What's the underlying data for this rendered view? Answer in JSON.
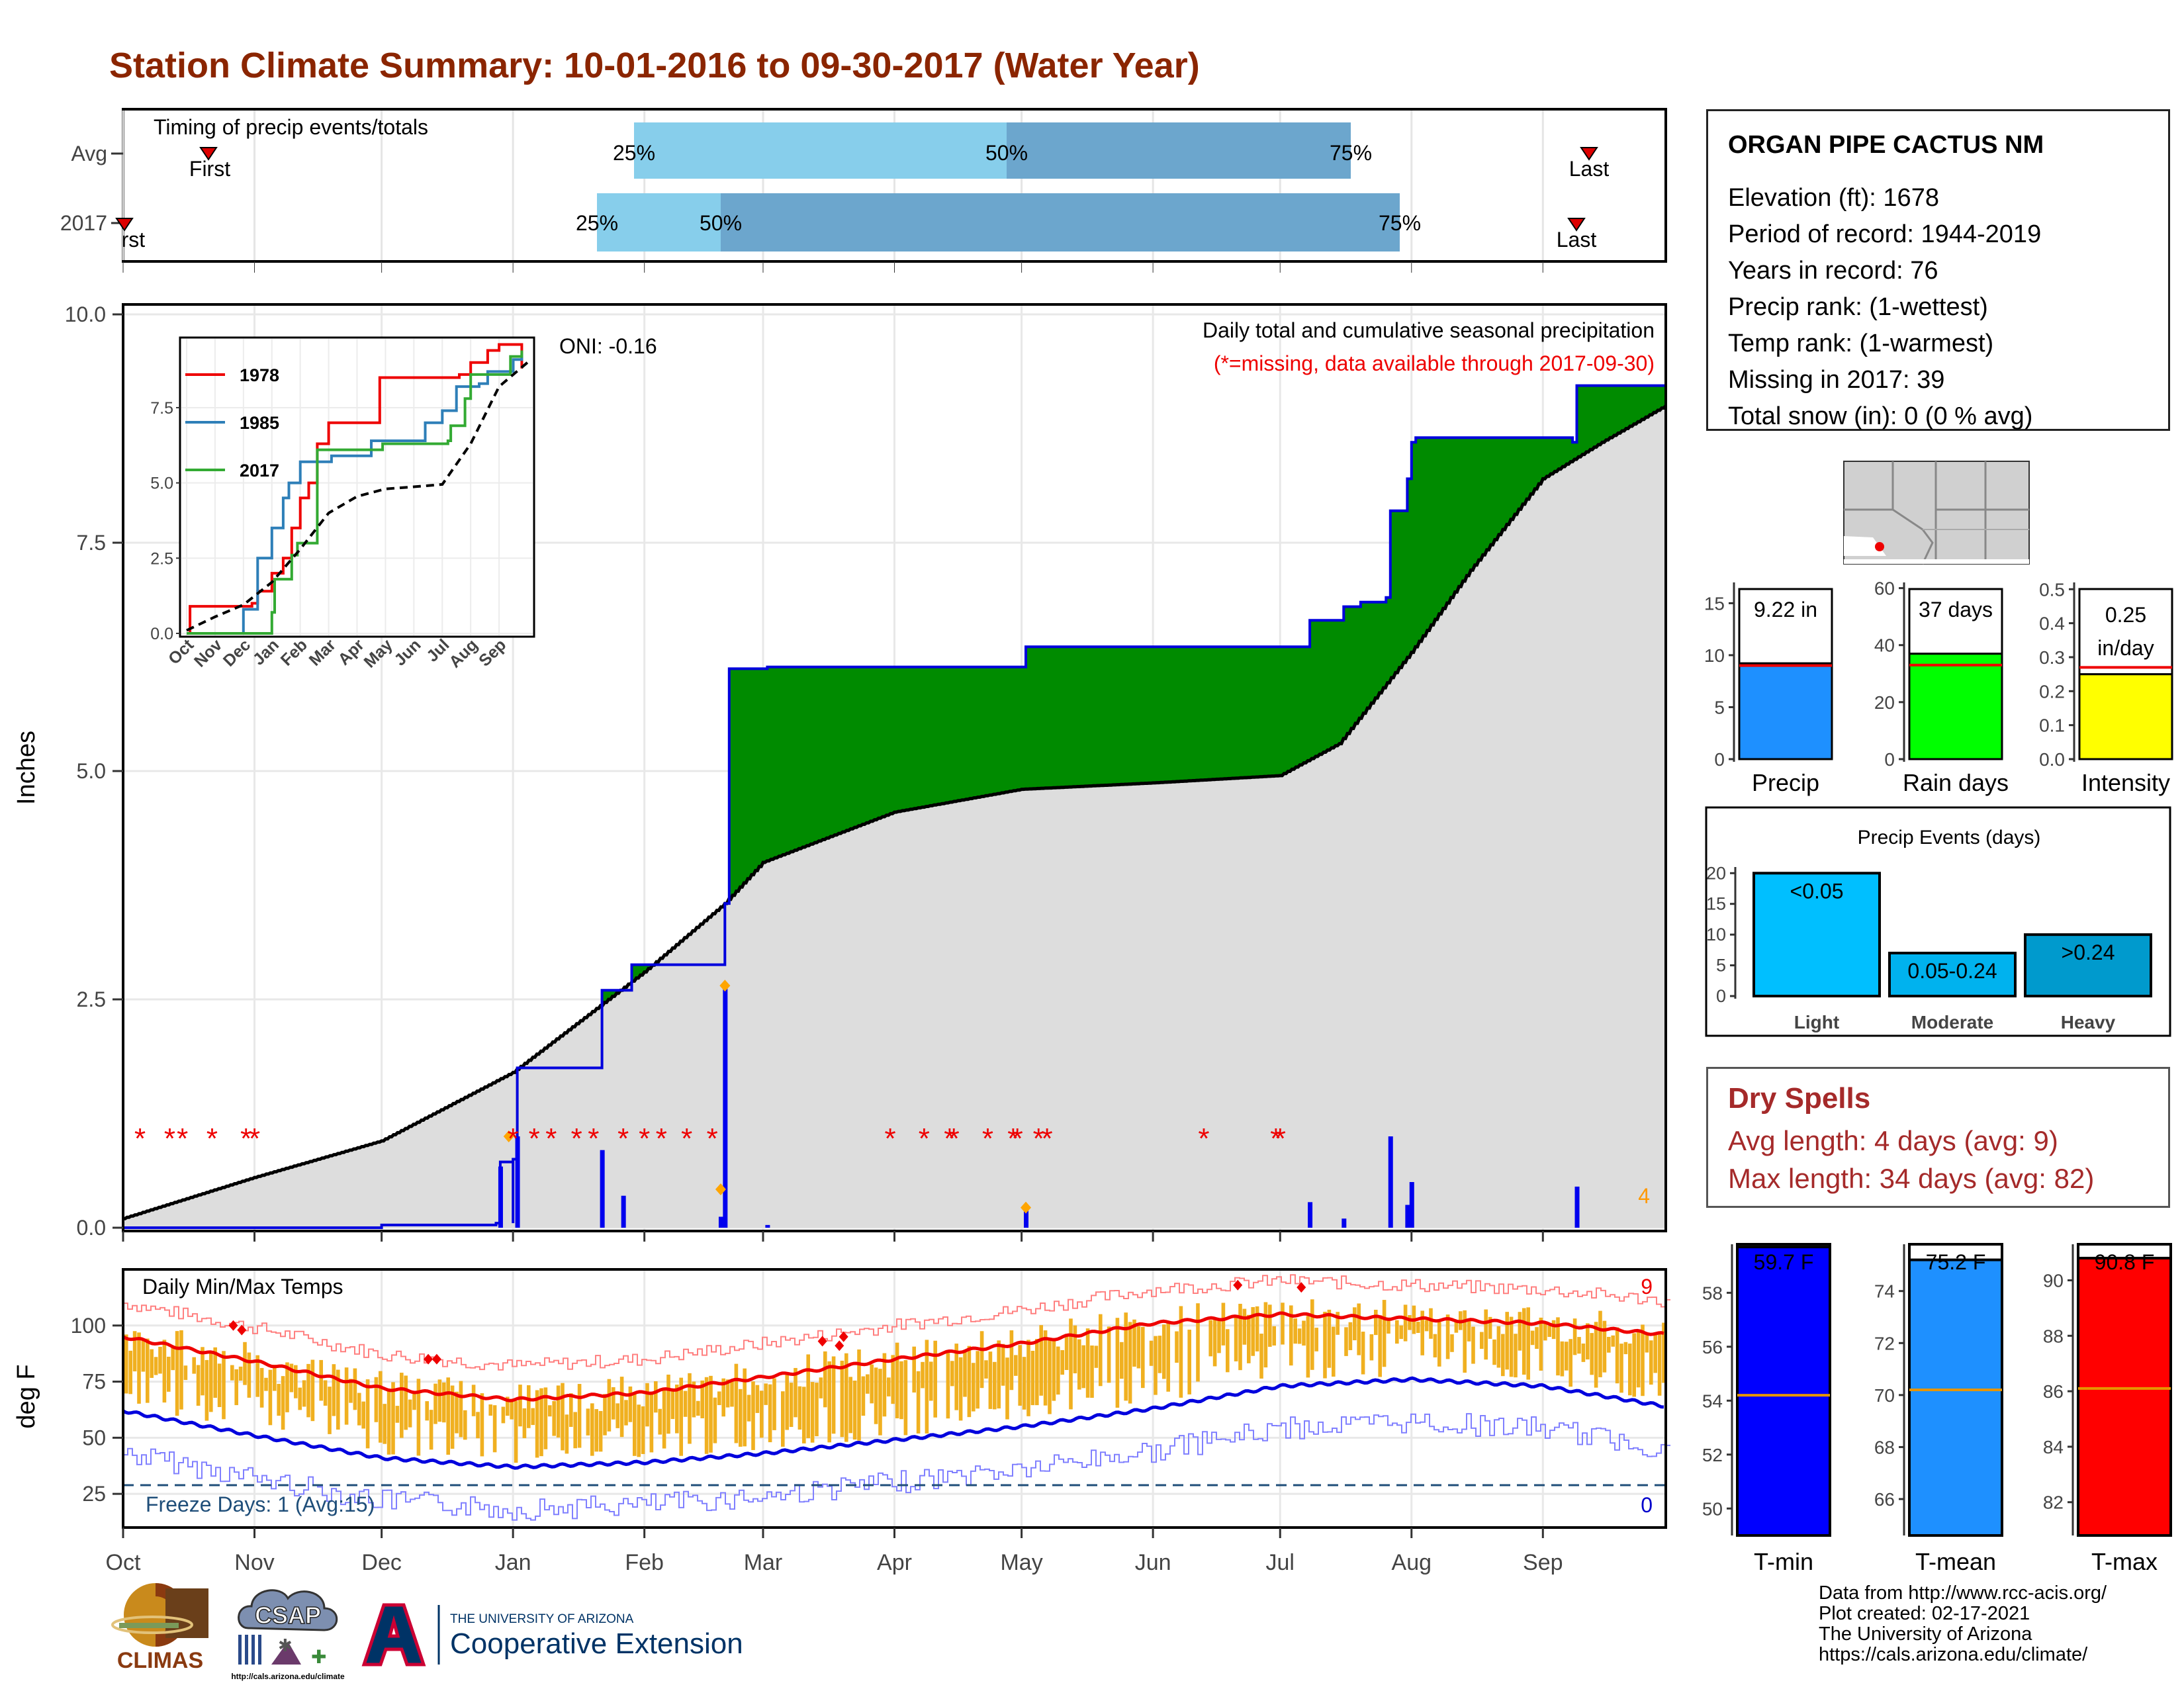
{
  "title": "Station Climate Summary: 10-01-2016 to 09-30-2017 (Water Year)",
  "timing": {
    "label": "Timing of precip events/totals",
    "rows": [
      {
        "name": "Avg",
        "first": "First",
        "last": "Last",
        "q25": "25%",
        "q50": "50%",
        "q75": "75%"
      },
      {
        "name": "2017",
        "first": "First",
        "last": "Last",
        "q25": "25%",
        "q50": "50%",
        "q75": "75%"
      }
    ]
  },
  "main": {
    "ylabel": "Inches",
    "oni": "ONI: -0.16",
    "subtitle": "Daily total and cumulative seasonal precipitation",
    "missing_note": "(*=missing, data available through 2017-09-30)",
    "count_label": "4",
    "yticks": [
      "0.0",
      "2.5",
      "5.0",
      "7.5",
      "10.0"
    ],
    "months": [
      "Oct",
      "Nov",
      "Dec",
      "Jan",
      "Feb",
      "Mar",
      "Apr",
      "May",
      "Jun",
      "Jul",
      "Aug",
      "Sep"
    ]
  },
  "inset": {
    "series": [
      "1978",
      "1985",
      "2017"
    ],
    "yticks": [
      "0.0",
      "2.5",
      "5.0",
      "7.5"
    ]
  },
  "temps": {
    "label": "Daily Min/Max Temps",
    "ylabel": "deg F",
    "yticks": [
      "25",
      "50",
      "75",
      "100"
    ],
    "freeze": "Freeze Days: 1 (Avg:15)",
    "hot_count": "9",
    "cold_count": "0"
  },
  "station": {
    "name": "ORGAN PIPE CACTUS NM",
    "lines": [
      "Elevation (ft): 1678",
      "Period of record: 1944-2019",
      "Years in record: 76",
      "Precip rank:  (1-wettest)",
      "Temp rank:  (1-warmest)",
      "Missing in 2017: 39",
      "Total snow (in): 0 (0 % avg)"
    ]
  },
  "summary_bars": [
    {
      "label": "Precip",
      "value_text": "9.22 in",
      "yticks": [
        "0",
        "5",
        "10",
        "15"
      ]
    },
    {
      "label": "Rain days",
      "value_text": "37 days",
      "yticks": [
        "0",
        "20",
        "40",
        "60"
      ]
    },
    {
      "label": "Intensity",
      "value_text": "0.25 in/day",
      "value_line1": "0.25",
      "value_line2": "in/day",
      "yticks": [
        "0.0",
        "0.1",
        "0.2",
        "0.3",
        "0.4",
        "0.5"
      ]
    }
  ],
  "events": {
    "title": "Precip Events (days)",
    "yticks": [
      "0",
      "5",
      "10",
      "15",
      "20"
    ],
    "bars": [
      {
        "cat": "Light",
        "label": "<0.05"
      },
      {
        "cat": "Moderate",
        "label": "0.05-0.24"
      },
      {
        "cat": "Heavy",
        "label": ">0.24"
      }
    ]
  },
  "dry_spells": {
    "title": "Dry Spells",
    "avg": "Avg length: 4 days (avg: 9)",
    "max": "Max length: 34 days (avg: 82)"
  },
  "temp_bars": [
    {
      "label": "T-min",
      "value_text": "59.7 F",
      "yticks": [
        "50",
        "52",
        "54",
        "56",
        "58"
      ]
    },
    {
      "label": "T-mean",
      "value_text": "75.2 F",
      "yticks": [
        "66",
        "68",
        "70",
        "72",
        "74"
      ]
    },
    {
      "label": "T-max",
      "value_text": "90.8 F",
      "yticks": [
        "82",
        "84",
        "86",
        "88",
        "90"
      ]
    }
  ],
  "credits": [
    "Data from http://www.rcc-acis.org/",
    "Plot created: 02-17-2021",
    "The University of Arizona",
    "https://cals.arizona.edu/climate/"
  ],
  "logos": {
    "climas": "CLIMAS",
    "csap": "CSAP",
    "csap_url": "http://cals.arizona.edu/climate",
    "ua_top": "THE UNIVERSITY OF ARIZONA",
    "ua_bottom": "Cooperative Extension"
  },
  "chart_data": [
    {
      "type": "area",
      "title": "Daily total and cumulative seasonal precipitation",
      "ylabel": "Inches",
      "ylim": [
        0,
        10
      ],
      "x_months": [
        "Oct",
        "Nov",
        "Dec",
        "Jan",
        "Feb",
        "Mar",
        "Apr",
        "May",
        "Jun",
        "Jul",
        "Aug",
        "Sep"
      ],
      "series": [
        {
          "name": "cumulative 2017",
          "points": [
            [
              "2016-10-01",
              0.0
            ],
            [
              "2016-11-01",
              0.0
            ],
            [
              "2016-12-01",
              0.03
            ],
            [
              "2017-01-01",
              0.05
            ],
            [
              "2016-12-28",
              0.05
            ],
            [
              "2016-12-29",
              0.72
            ],
            [
              "2017-01-01",
              0.75
            ],
            [
              "2017-01-02",
              1.75
            ],
            [
              "2017-01-21",
              1.75
            ],
            [
              "2017-01-22",
              2.6
            ],
            [
              "2017-01-28",
              2.6
            ],
            [
              "2017-01-29",
              2.88
            ],
            [
              "2017-02-19",
              2.88
            ],
            [
              "2017-02-20",
              3.55
            ],
            [
              "2017-02-21",
              6.12
            ],
            [
              "2017-03-01",
              6.12
            ],
            [
              "2017-03-02",
              6.14
            ],
            [
              "2017-05-01",
              6.14
            ],
            [
              "2017-05-02",
              6.36
            ],
            [
              "2017-07-07",
              6.36
            ],
            [
              "2017-07-08",
              6.65
            ],
            [
              "2017-07-15",
              6.65
            ],
            [
              "2017-07-16",
              6.8
            ],
            [
              "2017-07-20",
              6.85
            ],
            [
              "2017-07-26",
              6.9
            ],
            [
              "2017-07-27",
              7.85
            ],
            [
              "2017-07-31",
              8.2
            ],
            [
              "2017-08-01",
              8.6
            ],
            [
              "2017-08-02",
              8.65
            ],
            [
              "2017-09-08",
              8.6
            ],
            [
              "2017-09-09",
              9.22
            ],
            [
              "2017-09-30",
              9.22
            ]
          ]
        },
        {
          "name": "cumulative avg",
          "points": [
            [
              "2016-10-01",
              0.1
            ],
            [
              "2016-11-01",
              0.55
            ],
            [
              "2016-12-01",
              0.95
            ],
            [
              "2017-01-01",
              1.7
            ],
            [
              "2017-02-01",
              2.8
            ],
            [
              "2017-02-20",
              3.55
            ],
            [
              "2017-03-01",
              4.0
            ],
            [
              "2017-04-01",
              4.55
            ],
            [
              "2017-05-01",
              4.8
            ],
            [
              "2017-06-01",
              4.87
            ],
            [
              "2017-07-01",
              4.95
            ],
            [
              "2017-07-15",
              5.3
            ],
            [
              "2017-08-01",
              6.3
            ],
            [
              "2017-08-15",
              7.2
            ],
            [
              "2017-09-01",
              8.2
            ],
            [
              "2017-09-15",
              8.6
            ],
            [
              "2017-09-30",
              9.0
            ]
          ]
        },
        {
          "name": "daily 2017",
          "points": [
            [
              "2016-12-29",
              0.67
            ],
            [
              "2017-01-02",
              1.0
            ],
            [
              "2017-01-22",
              0.85
            ],
            [
              "2017-01-27",
              0.35
            ],
            [
              "2017-02-19",
              0.12
            ],
            [
              "2017-02-20",
              2.65
            ],
            [
              "2017-03-02",
              0.03
            ],
            [
              "2017-05-02",
              0.22
            ],
            [
              "2017-07-08",
              0.28
            ],
            [
              "2017-07-16",
              0.1
            ],
            [
              "2017-07-27",
              1.0
            ],
            [
              "2017-07-31",
              0.25
            ],
            [
              "2017-08-01",
              0.5
            ],
            [
              "2017-09-09",
              0.45
            ]
          ]
        }
      ]
    },
    {
      "type": "line",
      "title": "",
      "ylim": [
        0,
        9.5
      ],
      "series": [
        {
          "name": "1978"
        },
        {
          "name": "1985"
        },
        {
          "name": "2017"
        }
      ]
    },
    {
      "type": "line",
      "title": "Daily Min/Max Temps",
      "ylabel": "deg F",
      "ylim": [
        10,
        125
      ],
      "series": [
        {
          "name": "avg max",
          "points": [
            [
              "2016-10-01",
              95
            ],
            [
              "2016-11-01",
              84
            ],
            [
              "2016-12-01",
              72
            ],
            [
              "2017-01-01",
              67
            ],
            [
              "2017-02-01",
              70
            ],
            [
              "2017-03-01",
              77
            ],
            [
              "2017-04-01",
              85
            ],
            [
              "2017-05-01",
              92
            ],
            [
              "2017-06-01",
              101
            ],
            [
              "2017-07-01",
              105
            ],
            [
              "2017-08-01",
              103
            ],
            [
              "2017-09-01",
              101
            ],
            [
              "2017-09-30",
              96
            ]
          ]
        },
        {
          "name": "avg min",
          "points": [
            [
              "2016-10-01",
              62
            ],
            [
              "2016-11-01",
              51
            ],
            [
              "2016-12-01",
              41
            ],
            [
              "2017-01-01",
              37
            ],
            [
              "2017-02-01",
              39
            ],
            [
              "2017-03-01",
              43
            ],
            [
              "2017-04-01",
              49
            ],
            [
              "2017-05-01",
              55
            ],
            [
              "2017-06-01",
              63
            ],
            [
              "2017-07-01",
              73
            ],
            [
              "2017-08-01",
              76
            ],
            [
              "2017-09-01",
              73
            ],
            [
              "2017-09-30",
              64
            ]
          ]
        },
        {
          "name": "freeze line",
          "points": [
            [
              "2016-10-01",
              32
            ],
            [
              "2017-09-30",
              32
            ]
          ]
        }
      ]
    },
    {
      "type": "bar",
      "categories": [
        "Precip"
      ],
      "values": [
        9.22
      ],
      "ylim": [
        0,
        17
      ]
    },
    {
      "type": "bar",
      "categories": [
        "Rain days"
      ],
      "values": [
        37
      ],
      "ylim": [
        0,
        62
      ]
    },
    {
      "type": "bar",
      "categories": [
        "Intensity"
      ],
      "values": [
        0.25
      ],
      "ylim": [
        0,
        0.52
      ]
    },
    {
      "type": "bar",
      "title": "Precip Events (days)",
      "categories": [
        "Light",
        "Moderate",
        "Heavy"
      ],
      "values": [
        20,
        7,
        10
      ],
      "ylim": [
        0,
        21
      ]
    },
    {
      "type": "bar",
      "categories": [
        "T-min"
      ],
      "values": [
        59.7
      ],
      "ylim": [
        49,
        59.8
      ]
    },
    {
      "type": "bar",
      "categories": [
        "T-mean"
      ],
      "values": [
        75.2
      ],
      "ylim": [
        64.6,
        75.8
      ]
    },
    {
      "type": "bar",
      "categories": [
        "T-max"
      ],
      "values": [
        90.8
      ],
      "ylim": [
        80.8,
        91.3
      ]
    }
  ]
}
